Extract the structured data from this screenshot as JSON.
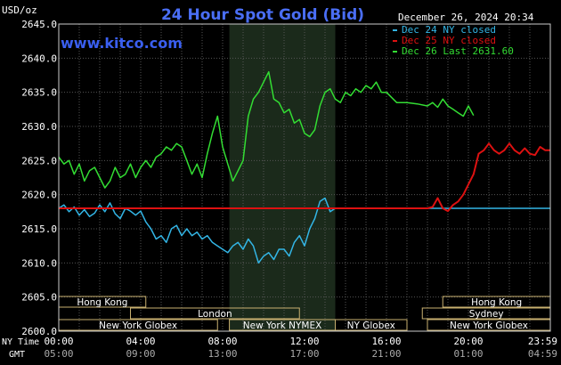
{
  "chart_data": {
    "type": "line",
    "title": "24 Hour Spot Gold (Bid)",
    "ylabel": "USD/oz",
    "watermark": "www.kitco.com",
    "timestamp": "December 26, 2024 20:34",
    "ylim": [
      2600,
      2645
    ],
    "yticks": [
      "2645.0",
      "2640.0",
      "2635.0",
      "2630.0",
      "2625.0",
      "2620.0",
      "2615.0",
      "2610.0",
      "2605.0",
      "2600.0"
    ],
    "x_range_hours": [
      0,
      24
    ],
    "ny_time_label": "NY Time",
    "gmt_label": "GMT",
    "x_ticks_ny": [
      {
        "h": 0,
        "label": "00:00"
      },
      {
        "h": 4,
        "label": "04:00"
      },
      {
        "h": 8,
        "label": "08:00"
      },
      {
        "h": 12,
        "label": "12:00"
      },
      {
        "h": 16,
        "label": "16:00"
      },
      {
        "h": 20,
        "label": "20:00"
      },
      {
        "h": 23.983,
        "label": "23:59"
      }
    ],
    "x_ticks_gmt": [
      {
        "h": 0,
        "label": "05:00"
      },
      {
        "h": 4,
        "label": "09:00"
      },
      {
        "h": 8,
        "label": "13:00"
      },
      {
        "h": 12,
        "label": "17:00"
      },
      {
        "h": 16,
        "label": "21:00"
      },
      {
        "h": 20,
        "label": "01:00"
      },
      {
        "h": 23.983,
        "label": "04:59"
      }
    ],
    "shaded_hours": [
      8.33,
      13.5
    ],
    "legend": [
      {
        "label": "Dec 24 NY closed",
        "color": "#33b5e5"
      },
      {
        "label": "Dec 25 NY closed",
        "color": "#dd1111"
      },
      {
        "label": "Dec 26 Last 2631.60",
        "color": "#33dd33"
      }
    ],
    "sessions": [
      {
        "label": "Hong Kong",
        "start": 0,
        "end": 4.25,
        "row": 0
      },
      {
        "label": "Hong Kong",
        "start": 18.75,
        "end": 24,
        "row": 0
      },
      {
        "label": "London",
        "start": 3.5,
        "end": 11.75,
        "row": 1
      },
      {
        "label": "Sydney",
        "start": 17.75,
        "end": 24,
        "row": 1
      },
      {
        "label": "New York Globex",
        "start": 0,
        "end": 7.75,
        "row": 2
      },
      {
        "label": "New York NYMEX",
        "start": 8.33,
        "end": 13.5,
        "row": 2
      },
      {
        "label": "NY Globex",
        "start": 13.5,
        "end": 17.0,
        "row": 2
      },
      {
        "label": "New York Globex",
        "start": 18.0,
        "end": 24,
        "row": 2
      }
    ],
    "series": [
      {
        "name": "Dec 24",
        "color": "#33b5e5",
        "x": [
          0,
          0.25,
          0.5,
          0.75,
          1,
          1.25,
          1.5,
          1.75,
          2,
          2.25,
          2.5,
          2.75,
          3,
          3.25,
          3.5,
          3.75,
          4,
          4.25,
          4.5,
          4.75,
          5,
          5.25,
          5.5,
          5.75,
          6,
          6.25,
          6.5,
          6.75,
          7,
          7.25,
          7.5,
          7.75,
          8,
          8.25,
          8.5,
          8.75,
          9,
          9.25,
          9.5,
          9.75,
          10,
          10.25,
          10.5,
          10.75,
          11,
          11.25,
          11.5,
          11.75,
          12,
          12.25,
          12.5,
          12.75,
          13,
          13.25,
          13.5,
          14,
          15,
          16,
          17,
          18,
          19,
          20,
          21,
          22,
          23,
          24
        ],
        "y": [
          2618.0,
          2618.5,
          2617.5,
          2618.2,
          2617.0,
          2617.8,
          2616.8,
          2617.3,
          2618.5,
          2617.5,
          2618.8,
          2617.2,
          2616.5,
          2618.0,
          2617.6,
          2617.0,
          2617.6,
          2616.0,
          2615.0,
          2613.5,
          2614.0,
          2613.0,
          2615.0,
          2615.5,
          2614.0,
          2615.0,
          2614.0,
          2614.5,
          2613.5,
          2614.0,
          2613.0,
          2612.5,
          2612.0,
          2611.5,
          2612.5,
          2613.0,
          2612.0,
          2613.5,
          2612.5,
          2610.0,
          2611.0,
          2611.5,
          2610.5,
          2612.0,
          2612.0,
          2611.0,
          2613.0,
          2614.0,
          2612.5,
          2615.0,
          2616.5,
          2619.0,
          2619.5,
          2617.5,
          2618.0,
          2618.0,
          2618.0,
          2618.0,
          2618.0,
          2618.0,
          2618.0,
          2618.0,
          2618.0,
          2618.0,
          2618.0,
          2618.0
        ]
      },
      {
        "name": "Dec 25",
        "color": "#dd1111",
        "x": [
          0,
          2,
          4,
          6,
          8,
          10,
          12,
          14,
          16,
          17,
          18,
          18.25,
          18.5,
          18.75,
          19,
          19.25,
          19.5,
          19.75,
          20,
          20.25,
          20.5,
          20.75,
          21,
          21.25,
          21.5,
          21.75,
          22,
          22.25,
          22.5,
          22.75,
          23,
          23.25,
          23.5,
          23.75,
          24
        ],
        "y": [
          2618.0,
          2618.0,
          2618.0,
          2618.0,
          2618.0,
          2618.0,
          2618.0,
          2618.0,
          2618.0,
          2618.0,
          2618.0,
          2618.2,
          2619.5,
          2618.0,
          2617.6,
          2618.5,
          2619.0,
          2620.0,
          2621.5,
          2623.0,
          2626.0,
          2626.5,
          2627.5,
          2626.5,
          2626.0,
          2626.5,
          2627.5,
          2626.5,
          2626.0,
          2626.8,
          2626.0,
          2625.8,
          2627.0,
          2626.5,
          2626.5
        ]
      },
      {
        "name": "Dec 26",
        "color": "#33dd33",
        "x": [
          0,
          0.25,
          0.5,
          0.75,
          1,
          1.25,
          1.5,
          1.75,
          2,
          2.25,
          2.5,
          2.75,
          3,
          3.25,
          3.5,
          3.75,
          4,
          4.25,
          4.5,
          4.75,
          5,
          5.25,
          5.5,
          5.75,
          6,
          6.25,
          6.5,
          6.75,
          7,
          7.25,
          7.5,
          7.75,
          8,
          8.25,
          8.5,
          8.75,
          9,
          9.25,
          9.5,
          9.75,
          10,
          10.25,
          10.5,
          10.75,
          11,
          11.25,
          11.5,
          11.75,
          12,
          12.25,
          12.5,
          12.75,
          13,
          13.25,
          13.5,
          13.75,
          14,
          14.25,
          14.5,
          14.75,
          15,
          15.25,
          15.5,
          15.75,
          16,
          16.5,
          17,
          17.5,
          18,
          18.25,
          18.5,
          18.75,
          19,
          19.25,
          19.5,
          19.75,
          20,
          20.25
        ],
        "y": [
          2625.5,
          2624.5,
          2625.0,
          2623.0,
          2624.5,
          2622.0,
          2623.5,
          2624.0,
          2622.5,
          2621.0,
          2622.0,
          2624.0,
          2622.5,
          2623.0,
          2624.5,
          2622.5,
          2624.0,
          2625.0,
          2624.0,
          2625.5,
          2626.0,
          2627.0,
          2626.5,
          2627.5,
          2627.0,
          2625.0,
          2623.0,
          2624.5,
          2622.5,
          2626.0,
          2629.0,
          2631.5,
          2627.0,
          2624.5,
          2622.0,
          2623.5,
          2625.0,
          2631.5,
          2634.0,
          2635.0,
          2636.5,
          2638.0,
          2634.0,
          2633.5,
          2632.0,
          2632.5,
          2630.5,
          2631.0,
          2629.0,
          2628.5,
          2629.5,
          2633.0,
          2635.0,
          2635.5,
          2634.0,
          2633.5,
          2635.0,
          2634.5,
          2635.5,
          2635.0,
          2636.0,
          2635.5,
          2636.5,
          2635.0,
          2635.0,
          2633.5,
          2633.5,
          2633.3,
          2633.0,
          2633.5,
          2632.8,
          2634.0,
          2633.0,
          2632.5,
          2632.0,
          2631.5,
          2633.0,
          2631.6
        ]
      }
    ]
  }
}
